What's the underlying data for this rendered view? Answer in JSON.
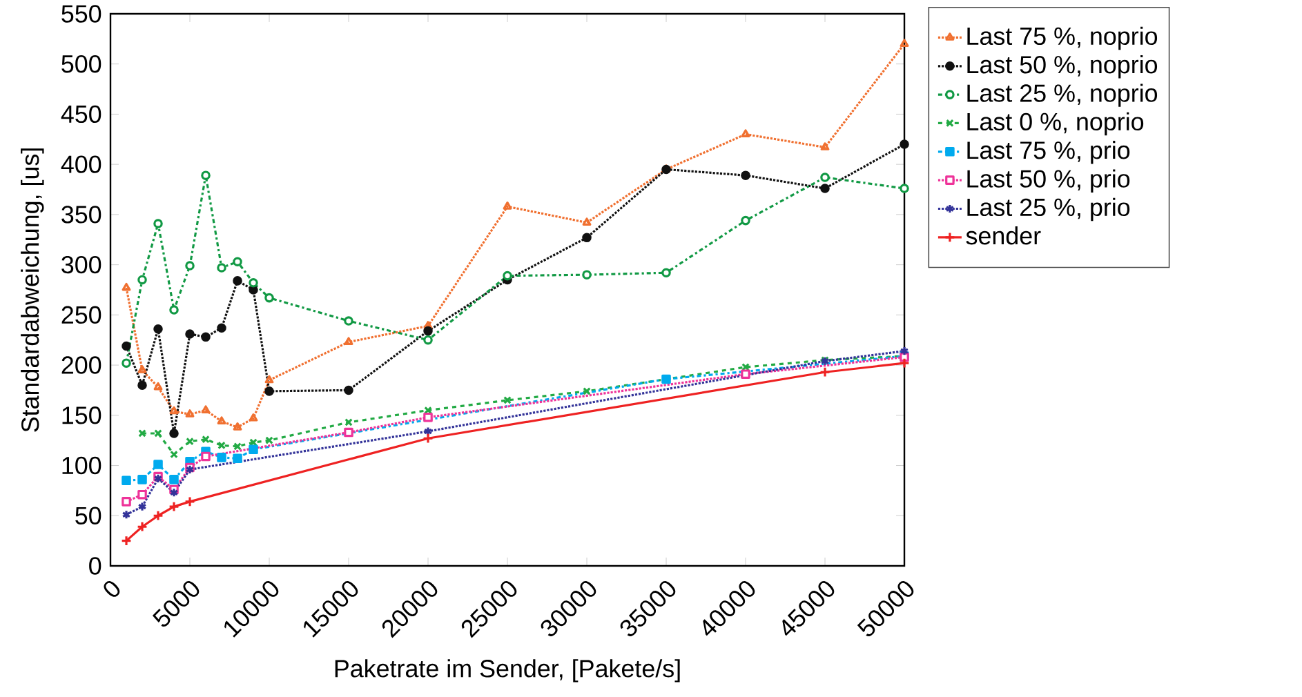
{
  "chart_data": {
    "type": "line",
    "xlabel": "Paketrate im Sender, [Pakete/s]",
    "ylabel": "Standardabweichung, [us]",
    "xlim": [
      0,
      50000
    ],
    "ylim": [
      0,
      550
    ],
    "xticks": [
      0,
      5000,
      10000,
      15000,
      20000,
      25000,
      30000,
      35000,
      40000,
      45000,
      50000
    ],
    "yticks": [
      0,
      50,
      100,
      150,
      200,
      250,
      300,
      350,
      400,
      450,
      500,
      550
    ],
    "grid": false,
    "legend": "right",
    "series": [
      {
        "name": "Last 75 %, noprio",
        "color": "#f07030",
        "marker": "triangle-open",
        "line_style": "dotted",
        "x": [
          1000,
          2000,
          3000,
          4000,
          5000,
          6000,
          7000,
          8000,
          9000,
          10000,
          15000,
          20000,
          25000,
          30000,
          35000,
          40000,
          45000,
          50000
        ],
        "values": [
          277,
          195,
          178,
          154,
          151,
          155,
          144,
          138,
          147,
          185,
          223,
          239,
          358,
          342,
          395,
          430,
          417,
          520
        ]
      },
      {
        "name": "Last 50 %, noprio",
        "color": "#111111",
        "marker": "circle",
        "line_style": "dotted",
        "x": [
          1000,
          2000,
          3000,
          4000,
          5000,
          6000,
          7000,
          8000,
          9000,
          10000,
          15000,
          20000,
          25000,
          30000,
          35000,
          40000,
          45000,
          50000
        ],
        "values": [
          219,
          180,
          236,
          132,
          231,
          228,
          237,
          284,
          275,
          174,
          175,
          234,
          285,
          327,
          395,
          389,
          376,
          420
        ]
      },
      {
        "name": "Last 25 %, noprio",
        "color": "#119944",
        "marker": "circle-open",
        "line_style": "dashdot",
        "x": [
          1000,
          2000,
          3000,
          4000,
          5000,
          6000,
          7000,
          8000,
          9000,
          10000,
          15000,
          20000,
          25000,
          30000,
          35000,
          40000,
          45000,
          50000
        ],
        "values": [
          202,
          285,
          341,
          255,
          299,
          389,
          297,
          303,
          282,
          267,
          244,
          225,
          289,
          290,
          292,
          344,
          387,
          376
        ]
      },
      {
        "name": "Last 0 %, noprio",
        "color": "#22aa44",
        "marker": "x",
        "line_style": "dashed",
        "x": [
          2000,
          3000,
          4000,
          5000,
          6000,
          7000,
          8000,
          9000,
          10000,
          15000,
          20000,
          25000,
          30000,
          35000,
          40000,
          45000,
          50000
        ],
        "values": [
          132,
          132,
          111,
          124,
          126,
          120,
          119,
          123,
          125,
          143,
          155,
          165,
          174,
          186,
          198,
          205,
          209
        ]
      },
      {
        "name": "Last 75 %, prio",
        "color": "#00aaee",
        "marker": "square",
        "line_style": "dashdot",
        "x": [
          1000,
          2000,
          3000,
          4000,
          5000,
          6000,
          7000,
          8000,
          9000,
          35000,
          50000
        ],
        "values": [
          85,
          86,
          101,
          86,
          104,
          114,
          108,
          107,
          116,
          186,
          209
        ]
      },
      {
        "name": "Last 50 %, prio",
        "color": "#ee3399",
        "marker": "square-open",
        "line_style": "dotted",
        "x": [
          1000,
          2000,
          3000,
          4000,
          5000,
          6000,
          15000,
          20000,
          40000,
          50000
        ],
        "values": [
          64,
          71,
          89,
          76,
          98,
          109,
          133,
          148,
          191,
          208
        ]
      },
      {
        "name": "Last 25 %, prio",
        "color": "#333399",
        "marker": "cross",
        "line_style": "dotted",
        "x": [
          1000,
          2000,
          3000,
          4000,
          5000,
          20000,
          45000,
          50000
        ],
        "values": [
          51,
          59,
          87,
          73,
          96,
          134,
          204,
          214
        ]
      },
      {
        "name": "sender",
        "color": "#ee2222",
        "marker": "plus",
        "line_style": "solid",
        "x": [
          1000,
          2000,
          3000,
          4000,
          5000,
          20000,
          45000,
          50000
        ],
        "values": [
          25,
          39,
          50,
          59,
          64,
          127,
          193,
          202
        ]
      }
    ]
  }
}
